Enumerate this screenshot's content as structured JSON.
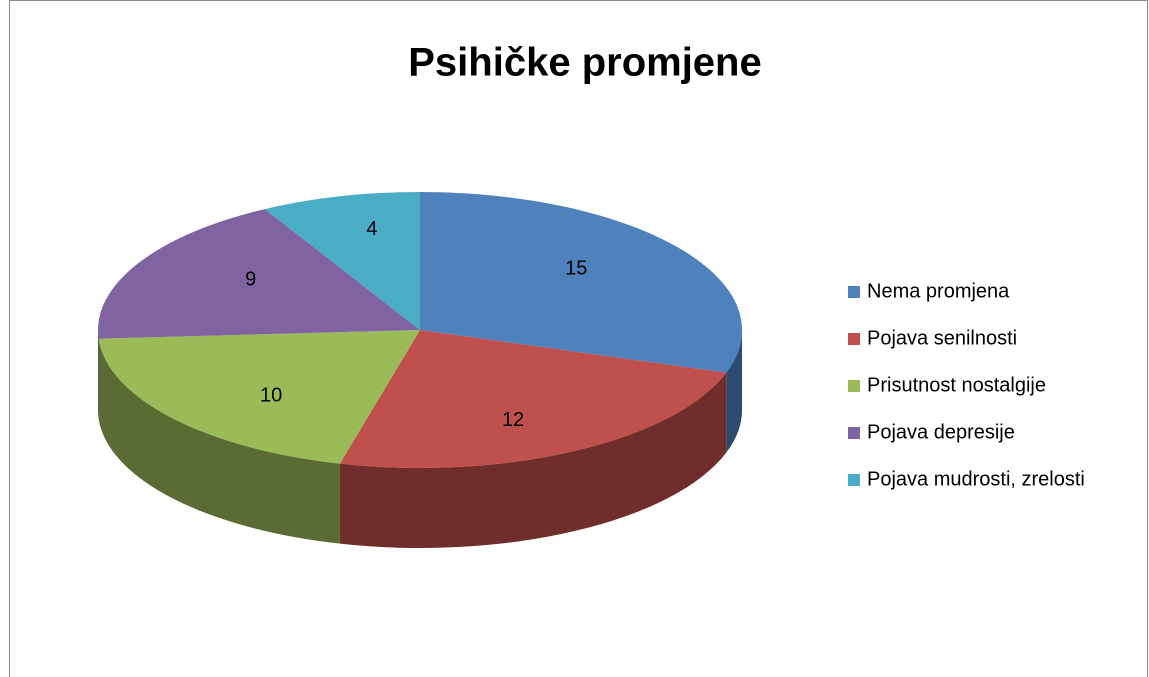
{
  "chart_data": {
    "type": "pie",
    "title": "Psihičke promjene",
    "categories": [
      "Nema promjena",
      "Pojava senilnosti",
      "Prisutnost nostalgije",
      "Pojava depresije",
      "Pojava mudrosti, zrelosti"
    ],
    "values": [
      15,
      12,
      10,
      9,
      4
    ],
    "colors": [
      "#4f81bd",
      "#c0504d",
      "#9bbb59",
      "#8064a2",
      "#4bacc6"
    ],
    "legend": "right"
  }
}
